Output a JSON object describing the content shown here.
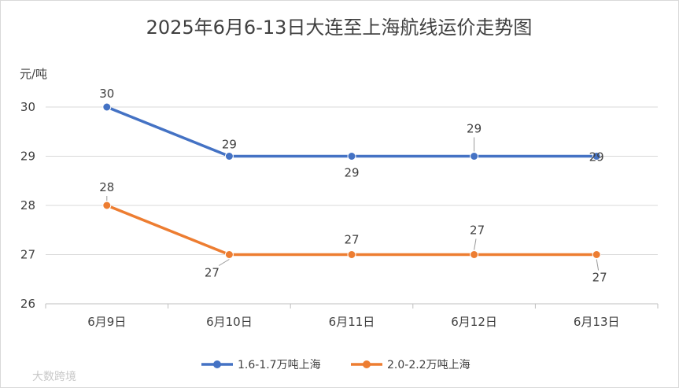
{
  "chart_data": {
    "type": "line",
    "title": "2025年6月6-13日大连至上海航线运价走势图",
    "ylabel": "元/吨",
    "xlabel": "",
    "categories": [
      "6月9日",
      "6月10日",
      "6月11日",
      "6月12日",
      "6月13日"
    ],
    "ylim": [
      26,
      30
    ],
    "yticks": [
      26,
      27,
      28,
      29,
      30
    ],
    "grid": true,
    "legend_position": "bottom",
    "series": [
      {
        "name": "1.6-1.7万吨上海",
        "color": "#4472c4",
        "values": [
          30,
          29,
          29,
          29,
          29
        ]
      },
      {
        "name": "2.0-2.2万吨上海",
        "color": "#ed7d31",
        "values": [
          28,
          27,
          27,
          27,
          27
        ]
      }
    ]
  },
  "watermark": "大数跨境"
}
